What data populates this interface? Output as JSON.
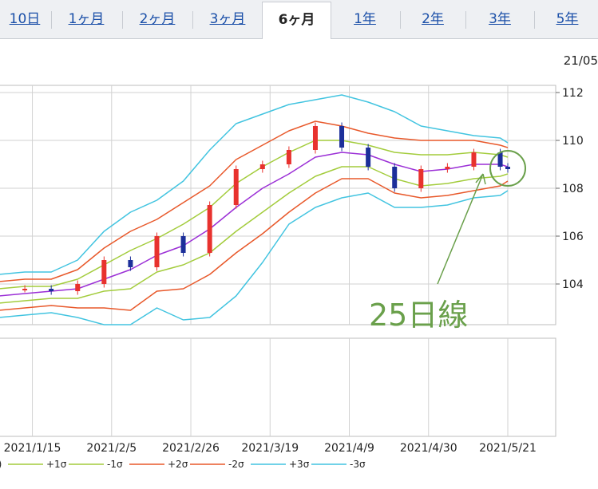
{
  "tabs": [
    {
      "label": "10日",
      "active": false
    },
    {
      "label": "1ヶ月",
      "active": false
    },
    {
      "label": "2ヶ月",
      "active": false
    },
    {
      "label": "3ヶ月",
      "active": false
    },
    {
      "label": "6ヶ月",
      "active": true
    },
    {
      "label": "1年",
      "active": false
    },
    {
      "label": "2年",
      "active": false
    },
    {
      "label": "3年",
      "active": false
    },
    {
      "label": "5年",
      "active": false
    }
  ],
  "date_label": "21/05",
  "annotation": "25日線",
  "colors": {
    "up": "#e8322e",
    "down": "#1c2f9a",
    "ma": "#9b2fd6",
    "sigma1": "#a3cc3c",
    "sigma2": "#e8582a",
    "sigma3": "#42c4e0",
    "annotation": "#6aa04b"
  },
  "chart_data": {
    "type": "candlestick",
    "title": "",
    "xlabel": "",
    "ylabel": "",
    "ylim": [
      102.3,
      112.3
    ],
    "yticks": [
      104,
      106,
      108,
      110,
      112
    ],
    "xticks": [
      "2021/1/15",
      "2021/2/5",
      "2021/2/26",
      "2021/3/19",
      "2021/4/9",
      "2021/4/30",
      "2021/5/21"
    ],
    "x_range": [
      "2021/1/6",
      "2021/5/21"
    ],
    "grid": true,
    "legend": {
      "position": "bottom",
      "items": [
        {
          "label": "0)",
          "color": "#9b2fd6"
        },
        {
          "label": "+1σ",
          "color": "#a3cc3c"
        },
        {
          "label": "-1σ",
          "color": "#a3cc3c"
        },
        {
          "label": "+2σ",
          "color": "#e8582a"
        },
        {
          "label": "-2σ",
          "color": "#e8582a"
        },
        {
          "label": "+3σ",
          "color": "#42c4e0"
        },
        {
          "label": "-3σ",
          "color": "#42c4e0"
        }
      ]
    },
    "x": [
      "2021/1/6",
      "2021/1/13",
      "2021/1/20",
      "2021/1/27",
      "2021/2/3",
      "2021/2/10",
      "2021/2/17",
      "2021/2/24",
      "2021/3/3",
      "2021/3/10",
      "2021/3/17",
      "2021/3/24",
      "2021/3/31",
      "2021/4/7",
      "2021/4/14",
      "2021/4/21",
      "2021/4/28",
      "2021/5/5",
      "2021/5/12",
      "2021/5/19",
      "2021/5/21"
    ],
    "close": [
      103.8,
      103.8,
      103.7,
      104.0,
      105.0,
      104.7,
      106.0,
      105.3,
      107.3,
      108.8,
      109.0,
      109.6,
      110.6,
      109.7,
      108.9,
      108.0,
      108.8,
      108.9,
      109.5,
      108.9,
      108.8
    ],
    "series": [
      {
        "name": "MA",
        "values": [
          103.5,
          103.6,
          103.7,
          103.8,
          104.2,
          104.6,
          105.2,
          105.6,
          106.3,
          107.2,
          108.0,
          108.6,
          109.3,
          109.5,
          109.4,
          109.0,
          108.7,
          108.8,
          109.0,
          109.0,
          108.9
        ]
      },
      {
        "name": "+1σ",
        "values": [
          103.8,
          103.9,
          103.9,
          104.2,
          104.8,
          105.4,
          105.9,
          106.5,
          107.2,
          108.2,
          108.9,
          109.5,
          110.0,
          110.0,
          109.8,
          109.5,
          109.4,
          109.4,
          109.5,
          109.4,
          109.3
        ]
      },
      {
        "name": "-1σ",
        "values": [
          103.2,
          103.3,
          103.4,
          103.4,
          103.7,
          103.8,
          104.5,
          104.8,
          105.3,
          106.2,
          107.0,
          107.8,
          108.5,
          108.9,
          108.9,
          108.4,
          108.1,
          108.2,
          108.4,
          108.5,
          108.6
        ]
      },
      {
        "name": "+2σ",
        "values": [
          104.1,
          104.2,
          104.2,
          104.6,
          105.5,
          106.2,
          106.7,
          107.4,
          108.1,
          109.2,
          109.8,
          110.4,
          110.8,
          110.6,
          110.3,
          110.1,
          110.0,
          110.0,
          110.0,
          109.8,
          109.7
        ]
      },
      {
        "name": "-2σ",
        "values": [
          102.9,
          103.0,
          103.1,
          103.0,
          103.0,
          102.9,
          103.7,
          103.8,
          104.4,
          105.3,
          106.1,
          107.0,
          107.8,
          108.4,
          108.4,
          107.8,
          107.6,
          107.7,
          107.9,
          108.1,
          108.3
        ]
      },
      {
        "name": "+3σ",
        "values": [
          104.4,
          104.5,
          104.5,
          105.0,
          106.2,
          107.0,
          107.5,
          108.3,
          109.6,
          110.7,
          111.1,
          111.5,
          111.7,
          111.9,
          111.6,
          111.2,
          110.6,
          110.4,
          110.2,
          110.1,
          109.9
        ]
      },
      {
        "name": "-3σ",
        "values": [
          102.6,
          102.7,
          102.8,
          102.6,
          102.3,
          102.3,
          103.0,
          102.5,
          102.6,
          103.5,
          104.9,
          106.5,
          107.2,
          107.6,
          107.8,
          107.2,
          107.2,
          107.3,
          107.6,
          107.7,
          107.9
        ]
      }
    ]
  }
}
